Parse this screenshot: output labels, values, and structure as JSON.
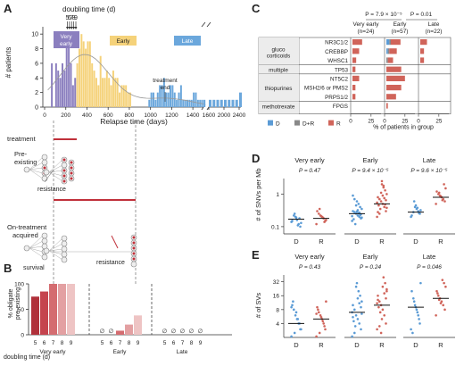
{
  "panel_labels": {
    "a": "A",
    "b": "B",
    "c": "C",
    "d": "D",
    "e": "E"
  },
  "colors": {
    "very_early": "#8B7FBF",
    "early": "#F5D27A",
    "late": "#6BA7DC",
    "D": "#5B9BD5",
    "DR": "#888888",
    "R": "#D0645A",
    "b_bars": [
      "#B0303A",
      "#C5444E",
      "#D46C70",
      "#E3A0A2",
      "#EEC4C4"
    ]
  },
  "panel_a": {
    "doubling_title": "doubling time (d)",
    "doubling_digits": "56789",
    "ylabel": "# patients",
    "xlabel": "Relapse time (days)",
    "y_ticks": [
      "0",
      "2",
      "4",
      "6",
      "8",
      "10"
    ],
    "x_ticks": [
      "0",
      "200",
      "400",
      "600",
      "800",
      "1000",
      "1200",
      "1400",
      "1600",
      "2000",
      "2400"
    ],
    "groups": [
      {
        "label": "Very\nearly",
        "line1": "Very",
        "line2": "early"
      },
      {
        "label": "Early"
      },
      {
        "label": "Late"
      }
    ],
    "annotation": "treatment\nend",
    "annotation_line1": "treatment",
    "annotation_line2": "end"
  },
  "diagram": {
    "treatment": "treatment",
    "preexisting_1": "Pre-",
    "preexisting_2": "existing",
    "resistance_1": "resistance",
    "ontreatment_1": "On-treatment",
    "ontreatment_2": "acquired",
    "survival": "survival",
    "resistance_2": "resistance"
  },
  "chart_data": [
    {
      "type": "bar",
      "panel": "A",
      "ylabel": "# patients",
      "xlabel": "Relapse time (days)",
      "ylim": [
        0,
        11
      ],
      "bin_width_days": 20,
      "series": [
        {
          "name": "Very early",
          "x": [
            60,
            80,
            100,
            120,
            140,
            160,
            180,
            200,
            220,
            240,
            260,
            280
          ],
          "values": [
            6,
            0,
            6,
            5,
            4,
            6,
            5,
            9,
            10,
            6,
            3,
            4
          ]
        },
        {
          "name": "Early",
          "x": [
            300,
            320,
            340,
            360,
            380,
            400,
            420,
            440,
            460,
            480,
            500,
            520,
            540,
            560,
            580,
            600,
            620,
            640,
            660,
            680,
            700,
            720,
            740,
            760,
            780,
            800
          ],
          "values": [
            6,
            8,
            10,
            9,
            8,
            9,
            9,
            6,
            5,
            4,
            3,
            7,
            4,
            4,
            5,
            4,
            3,
            5,
            4,
            4,
            2,
            3,
            3,
            3,
            2,
            2
          ]
        },
        {
          "name": "Late",
          "x": [
            980,
            1000,
            1020,
            1040,
            1060,
            1080,
            1100,
            1120,
            1140,
            1160,
            1180,
            1200,
            1220,
            1240,
            1260,
            1280,
            1300,
            1320,
            1340,
            1360,
            1380,
            1400,
            1420,
            1440,
            1460,
            1480,
            1500,
            1600,
            1700,
            1800,
            1900,
            2000,
            2100,
            2200,
            2300,
            2400
          ],
          "values": [
            1,
            2,
            2,
            1,
            2,
            3,
            3,
            4,
            2,
            2,
            3,
            3,
            2,
            1,
            2,
            3,
            1,
            1,
            1,
            1,
            1,
            2,
            2,
            1,
            1,
            1,
            1,
            1,
            1,
            1,
            1,
            1,
            1,
            1,
            1,
            2
          ]
        }
      ],
      "doubling_markers_days": [
        215,
        235,
        255,
        275,
        295
      ],
      "treatment_end_days": 1050
    },
    {
      "type": "bar",
      "panel": "B",
      "ylabel": "% obligate\npre-existing",
      "ylabel_line1": "% obligate",
      "ylabel_line2": "pre-existing",
      "xlabel": "doubling time (d)",
      "ylim": [
        0,
        100
      ],
      "y_ticks": [
        "0",
        "50",
        "100"
      ],
      "groups": [
        {
          "name": "Very early",
          "categories": [
            "5",
            "6",
            "7",
            "8",
            "9"
          ],
          "values": [
            75,
            85,
            100,
            100,
            100
          ]
        },
        {
          "name": "Early",
          "categories": [
            "5",
            "6",
            "7",
            "8",
            "9"
          ],
          "values": [
            0,
            0,
            8,
            20,
            38
          ]
        },
        {
          "name": "Late",
          "categories": [
            "5",
            "6",
            "7",
            "8",
            "9"
          ],
          "values": [
            0,
            0,
            0,
            0,
            0
          ]
        }
      ],
      "empty_marker": "∅"
    },
    {
      "type": "bar",
      "panel": "C",
      "xlabel": "% of patients in group",
      "x_ticks": [
        "0",
        "25"
      ],
      "pvalues": [
        "P = 7.9 × 10⁻⁵",
        "P = 0.01"
      ],
      "groups": [
        {
          "line1": "Very early",
          "line2": "(n=24)"
        },
        {
          "line1": "Early",
          "line2": "(n=57)"
        },
        {
          "line1": "Late",
          "line2": "(n=22)"
        }
      ],
      "categories": [
        {
          "name": "gluco\ncorticoids",
          "line1": "gluco",
          "line2": "corticoids",
          "genes": [
            "NR3C1/2",
            "CREBBP",
            "WHSC1"
          ]
        },
        {
          "name": "multiple",
          "genes": [
            "TP53"
          ]
        },
        {
          "name": "thiopurines",
          "genes": [
            "NT5C2",
            "MSH2/6 or PMS2",
            "PRPS1/2"
          ]
        },
        {
          "name": "methotrexate",
          "genes": [
            "FPGS"
          ]
        }
      ],
      "genes": [
        "NR3C1/2",
        "CREBBP",
        "WHSC1",
        "TP53",
        "NT5C2",
        "MSH2/6 or PMS2",
        "PRPS1/2",
        "FPGS"
      ],
      "series": [
        {
          "name": "D",
          "values": {
            "Very early": [
              0,
              0,
              0,
              0,
              0,
              0,
              0,
              0
            ],
            "Early": [
              4,
              2,
              0,
              0,
              0,
              0,
              0,
              0
            ],
            "Late": [
              0,
              0,
              0,
              0,
              0,
              0,
              0,
              0
            ]
          }
        },
        {
          "name": "D+R",
          "values": {
            "Very early": [
              0,
              0,
              0,
              0,
              0,
              0,
              0,
              0
            ],
            "Early": [
              2,
              2,
              2,
              0,
              0,
              0,
              0,
              0
            ],
            "Late": [
              0,
              0,
              0,
              0,
              0,
              0,
              0,
              0
            ]
          }
        },
        {
          "name": "R",
          "values": {
            "Very early": [
              13,
              9,
              5,
              4,
              9,
              4,
              4,
              0
            ],
            "Early": [
              13,
              10,
              7,
              20,
              25,
              20,
              13,
              2
            ],
            "Late": [
              9,
              5,
              5,
              0,
              0,
              0,
              0,
              0
            ]
          }
        }
      ],
      "legend": [
        "D",
        "D+R",
        "R"
      ]
    },
    {
      "type": "scatter",
      "panel": "D",
      "ylabel": "# of SNVs per Mb",
      "y_scale": "log",
      "y_ticks": [
        "0.1",
        "1"
      ],
      "panels": [
        {
          "title": "Very early",
          "p": "P = 0.47",
          "D_median": 0.17,
          "R_median": 0.18,
          "D": [
            0.14,
            0.1,
            0.12,
            0.16,
            0.2,
            0.22,
            0.15,
            0.13,
            0.18,
            0.11,
            0.19,
            0.25
          ],
          "R": [
            0.12,
            0.15,
            0.18,
            0.2,
            0.22,
            0.25,
            0.3,
            0.16,
            0.14,
            0.19,
            0.21,
            0.35
          ]
        },
        {
          "title": "Early",
          "p": "P = 9.4 × 10⁻⁵",
          "D_median": 0.25,
          "R_median": 0.5,
          "D": [
            0.15,
            0.18,
            0.2,
            0.22,
            0.25,
            0.28,
            0.3,
            0.35,
            0.4,
            0.5,
            0.6,
            0.12,
            0.17,
            0.21,
            0.24,
            0.27,
            0.32,
            0.45,
            0.7,
            0.9,
            0.19,
            0.23,
            0.26,
            0.29
          ],
          "R": [
            0.2,
            0.3,
            0.4,
            0.5,
            0.6,
            0.7,
            0.8,
            1.0,
            1.3,
            1.6,
            2.0,
            0.35,
            0.45,
            0.55,
            0.65,
            0.75,
            0.9,
            1.1,
            0.25,
            0.28,
            0.38,
            0.48,
            1.8,
            2.5
          ]
        },
        {
          "title": "Late",
          "p": "P = 9.6 × 10⁻⁵",
          "D_median": 0.28,
          "R_median": 0.8,
          "D": [
            0.2,
            0.25,
            0.3,
            0.35,
            0.4,
            0.28,
            0.22,
            0.32,
            0.26,
            0.38,
            0.45,
            0.6
          ],
          "R": [
            0.5,
            0.6,
            0.7,
            0.8,
            0.9,
            1.0,
            1.2,
            1.5,
            2.0,
            0.65,
            0.85,
            1.1
          ]
        }
      ],
      "x_labels": [
        "D",
        "R"
      ]
    },
    {
      "type": "scatter",
      "panel": "E",
      "ylabel": "# of SVs",
      "y_scale": "log",
      "y_ticks": [
        "4",
        "8",
        "16",
        "32"
      ],
      "panels": [
        {
          "title": "Very early",
          "p": "P = 0.43",
          "D_median": 4,
          "R_median": 5,
          "D": [
            2,
            3,
            4,
            5,
            6,
            8,
            10,
            3,
            4,
            5,
            7,
            2.5,
            12,
            9
          ],
          "R": [
            2,
            3,
            4,
            5,
            6,
            7,
            9,
            12,
            3.5,
            4.5,
            5.5,
            2.5,
            8,
            6.5
          ]
        },
        {
          "title": "Early",
          "p": "P = 0.24",
          "D_median": 7,
          "R_median": 10,
          "D": [
            2,
            3,
            4,
            5,
            6,
            8,
            10,
            12,
            16,
            20,
            30,
            3.5,
            4.5,
            7,
            9,
            11,
            14,
            25,
            2.5,
            5.5,
            6.5
          ],
          "R": [
            3,
            4,
            6,
            8,
            10,
            12,
            16,
            20,
            30,
            40,
            5,
            7,
            9,
            11,
            14,
            18,
            25,
            2.5,
            3.5,
            13,
            22
          ]
        },
        {
          "title": "Late",
          "p": "P = 0.046",
          "D_median": 9,
          "R_median": 14,
          "D": [
            3,
            4,
            6,
            8,
            10,
            14,
            20,
            30,
            5,
            7,
            9,
            12,
            2.5
          ],
          "R": [
            6,
            8,
            10,
            12,
            14,
            16,
            20,
            25,
            30,
            35,
            11,
            13,
            18
          ]
        }
      ],
      "x_labels": [
        "D",
        "R"
      ]
    }
  ]
}
